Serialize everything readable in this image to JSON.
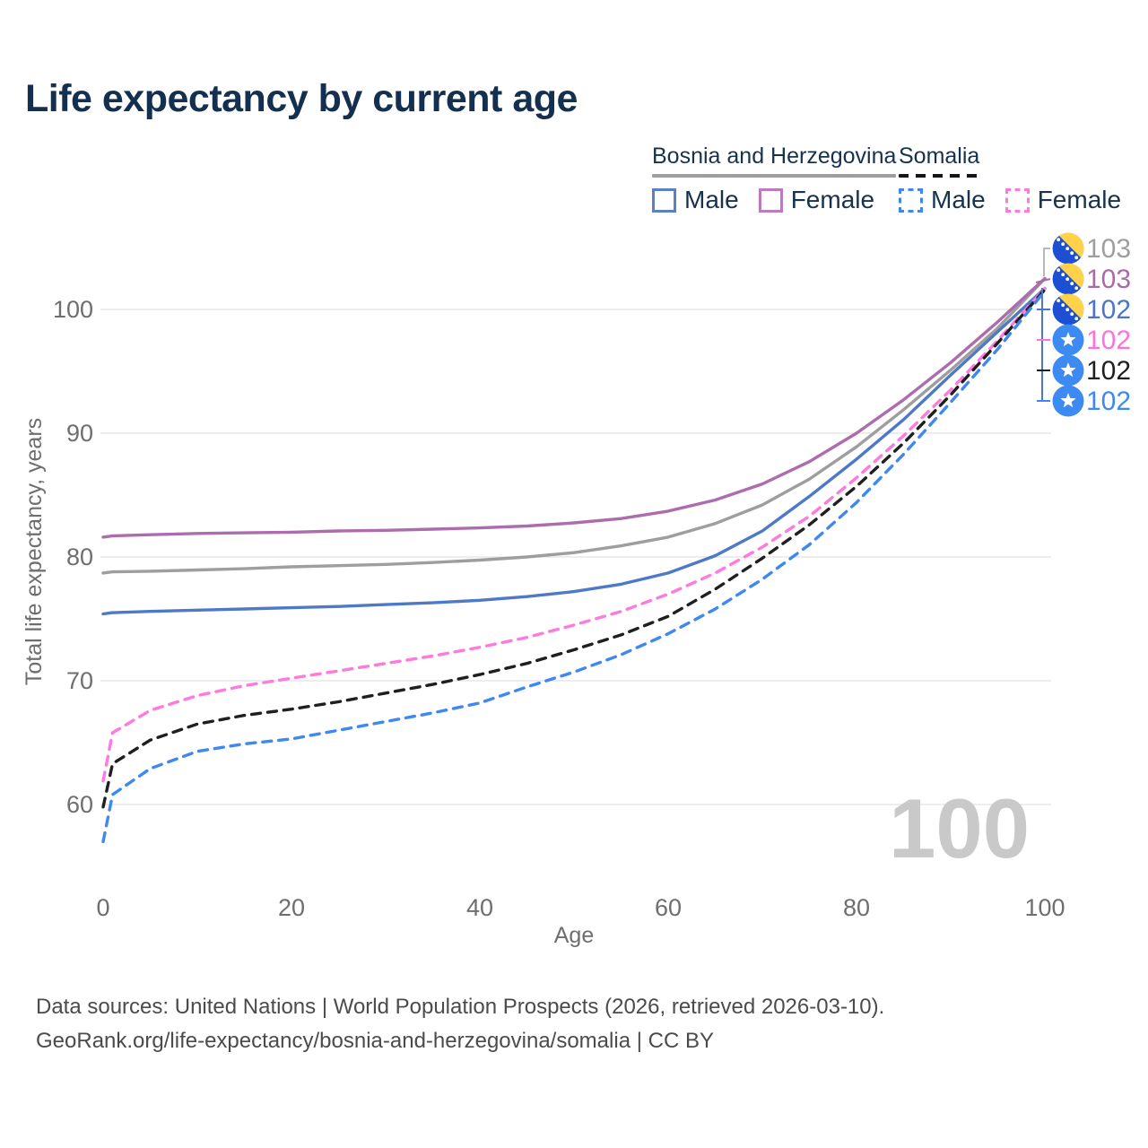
{
  "title": "Life expectancy by current age",
  "legend": {
    "groups": [
      {
        "country": "Bosnia and Herzegovina",
        "line_style": "solid",
        "underline_color": "#9e9e9e",
        "items": [
          {
            "label": "Male",
            "color": "#5b80c6",
            "dashed": false
          },
          {
            "label": "Female",
            "color": "#bd7abd",
            "dashed": false
          }
        ]
      },
      {
        "country": "Somalia",
        "line_style": "dashed",
        "underline_color": "#161616",
        "items": [
          {
            "label": "Male",
            "color": "#3f88f2",
            "dashed": true
          },
          {
            "label": "Female",
            "color": "#ff7ade",
            "dashed": true
          }
        ]
      }
    ]
  },
  "chart_data": {
    "type": "line",
    "title": "Life expectancy by current age",
    "xlabel": "Age",
    "ylabel": "Total life expectancy, years",
    "x_ticks": [
      0,
      20,
      40,
      60,
      80,
      100
    ],
    "y_ticks": [
      60,
      70,
      80,
      90,
      100
    ],
    "xlim": [
      0,
      100
    ],
    "ylim": [
      56,
      104
    ],
    "grid": "horizontal-only",
    "age_watermark": "100",
    "ages": [
      0,
      1,
      5,
      10,
      15,
      20,
      25,
      30,
      35,
      40,
      45,
      50,
      55,
      60,
      65,
      70,
      75,
      80,
      85,
      90,
      95,
      100
    ],
    "series": [
      {
        "id": "bosnia-and-herzegovina-average",
        "country": "Bosnia and Herzegovina",
        "color": "#9e9e9e",
        "dashed": false,
        "values": [
          78.7,
          78.8,
          78.85,
          78.95,
          79.05,
          79.2,
          79.3,
          79.4,
          79.55,
          79.75,
          80.0,
          80.35,
          80.9,
          81.6,
          82.7,
          84.2,
          86.3,
          88.9,
          91.9,
          95.1,
          98.5,
          102.5
        ],
        "end_label": "103",
        "end_label_color": "#9e9e9e",
        "flag": "bosnia",
        "label_row": 0
      },
      {
        "id": "bosnia-and-herzegovina-female",
        "country": "Bosnia and Herzegovina",
        "color": "#ad6cad",
        "dashed": false,
        "values": [
          81.6,
          81.7,
          81.8,
          81.9,
          81.95,
          82.0,
          82.1,
          82.15,
          82.25,
          82.35,
          82.5,
          82.75,
          83.1,
          83.7,
          84.6,
          85.9,
          87.7,
          90.0,
          92.7,
          95.7,
          99.0,
          102.5
        ],
        "end_label": "103",
        "end_label_color": "#a86ba8",
        "flag": "bosnia",
        "label_row": 1
      },
      {
        "id": "bosnia-and-herzegovina-male",
        "country": "Bosnia and Herzegovina",
        "color": "#4e79c7",
        "dashed": false,
        "values": [
          75.4,
          75.5,
          75.6,
          75.7,
          75.8,
          75.9,
          76.0,
          76.15,
          76.3,
          76.5,
          76.8,
          77.2,
          77.8,
          78.7,
          80.1,
          82.1,
          84.9,
          87.9,
          91.1,
          94.7,
          98.2,
          101.7
        ],
        "end_label": "102",
        "end_label_color": "#4a76c9",
        "flag": "bosnia",
        "label_row": 2
      },
      {
        "id": "somalia-female",
        "country": "Somalia",
        "color": "#ff7ade",
        "dashed": true,
        "values": [
          61.9,
          65.8,
          67.6,
          68.8,
          69.6,
          70.2,
          70.8,
          71.4,
          72.0,
          72.7,
          73.5,
          74.5,
          75.6,
          77.0,
          78.7,
          80.8,
          83.3,
          86.4,
          89.8,
          93.5,
          97.5,
          101.7
        ],
        "end_label": "102",
        "end_label_color": "#ff72dd",
        "flag": "somalia",
        "label_row": 3
      },
      {
        "id": "somalia-average",
        "country": "Somalia",
        "color": "#1f1f1f",
        "dashed": true,
        "values": [
          59.8,
          63.3,
          65.2,
          66.5,
          67.2,
          67.7,
          68.3,
          69.0,
          69.7,
          70.5,
          71.4,
          72.5,
          73.7,
          75.2,
          77.4,
          79.9,
          82.6,
          85.7,
          89.2,
          93.1,
          97.3,
          101.6
        ],
        "end_label": "102",
        "end_label_color": "#1f1f1f",
        "flag": "somalia",
        "label_row": 4
      },
      {
        "id": "somalia-male",
        "country": "Somalia",
        "color": "#3f88f2",
        "dashed": true,
        "values": [
          57.0,
          60.8,
          62.9,
          64.3,
          64.9,
          65.3,
          66.0,
          66.7,
          67.4,
          68.2,
          69.5,
          70.7,
          72.1,
          73.8,
          75.8,
          78.2,
          81.0,
          84.4,
          88.3,
          92.5,
          96.8,
          101.5
        ],
        "end_label": "102",
        "end_label_color": "#3f88f2",
        "flag": "somalia",
        "label_row": 5
      }
    ]
  },
  "footer": {
    "line1": "Data sources: United Nations | World Population Prospects (2026, retrieved 2026-03-10).",
    "line2": "GeoRank.org/life-expectancy/bosnia-and-herzegovina/somalia | CC BY"
  }
}
